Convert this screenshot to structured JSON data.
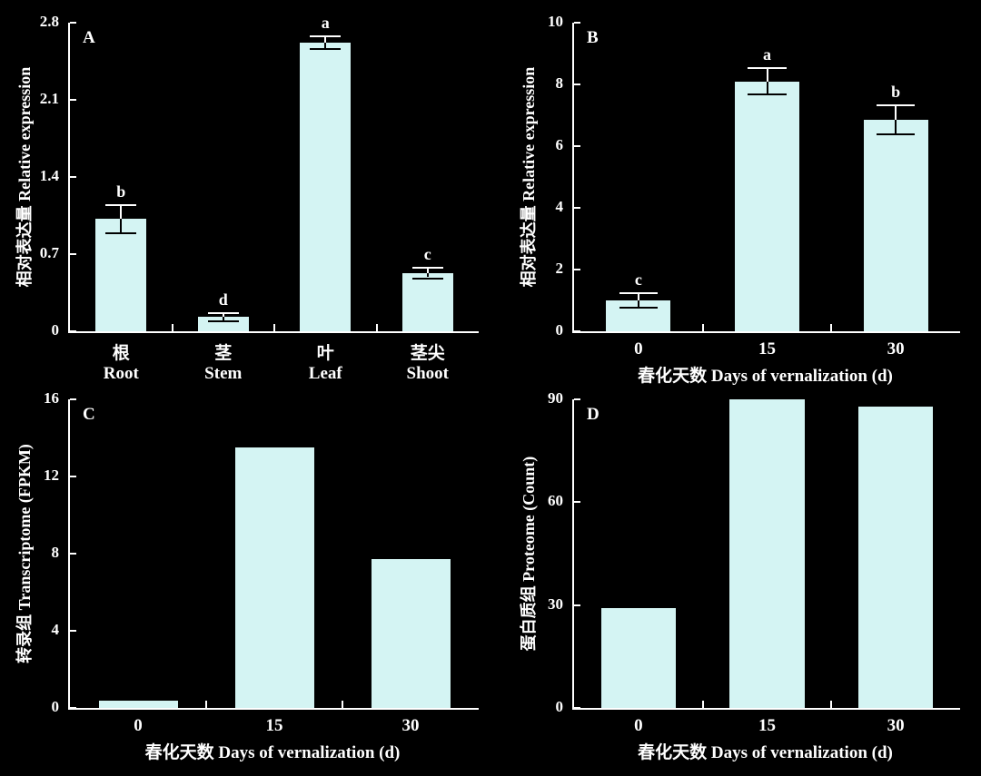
{
  "figure": {
    "background": "#000000",
    "text_color": "#ffffff",
    "axis_color": "#ffffff",
    "bar_fill": "#d4f4f3",
    "error_upper_color": "#ffffff",
    "error_lower_color": "#000000"
  },
  "chart_data": [
    {
      "panel": "A",
      "type": "bar",
      "ylabel": "相对表达量 Relative expression",
      "xlabel": "",
      "ylim": [
        0,
        2.8
      ],
      "yticks": [
        0,
        0.7,
        1.4,
        2.1,
        2.8
      ],
      "categories": [
        [
          "根",
          "Root"
        ],
        [
          "茎",
          "Stem"
        ],
        [
          "叶",
          "Leaf"
        ],
        [
          "茎尖",
          "Shoot"
        ]
      ],
      "values": [
        1.02,
        0.13,
        2.62,
        0.53
      ],
      "errors": [
        0.12,
        0.03,
        0.05,
        0.04
      ],
      "sig_letters": [
        "b",
        "d",
        "a",
        "c"
      ],
      "bar_fraction": 0.5,
      "grid": false,
      "legend": null
    },
    {
      "panel": "B",
      "type": "bar",
      "ylabel": "相对表达量 Relative expression",
      "xlabel": "春化天数 Days of vernalization (d)",
      "ylim": [
        0,
        10
      ],
      "yticks": [
        0,
        2,
        4,
        6,
        8,
        10
      ],
      "categories": [
        [
          "0"
        ],
        [
          "15"
        ],
        [
          "30"
        ]
      ],
      "values": [
        1.0,
        8.1,
        6.85
      ],
      "errors": [
        0.2,
        0.4,
        0.45
      ],
      "sig_letters": [
        "c",
        "a",
        "b"
      ],
      "bar_fraction": 0.5,
      "grid": false,
      "legend": null
    },
    {
      "panel": "C",
      "type": "bar",
      "ylabel": "转录组 Transcriptome (FPKM)",
      "xlabel": "春化天数 Days of vernalization (d)",
      "ylim": [
        0,
        16
      ],
      "yticks": [
        0,
        4,
        8,
        12,
        16
      ],
      "categories": [
        [
          "0"
        ],
        [
          "15"
        ],
        [
          "30"
        ]
      ],
      "values": [
        0.4,
        13.5,
        7.7
      ],
      "errors": null,
      "sig_letters": null,
      "bar_fraction": 0.58,
      "grid": false,
      "legend": null
    },
    {
      "panel": "D",
      "type": "bar",
      "ylabel": "蛋白质组 Proteome (Count)",
      "xlabel": "春化天数 Days of vernalization (d)",
      "ylim": [
        0,
        90
      ],
      "yticks": [
        0,
        30,
        60,
        90
      ],
      "categories": [
        [
          "0"
        ],
        [
          "15"
        ],
        [
          "30"
        ]
      ],
      "values": [
        29,
        90,
        88
      ],
      "errors": null,
      "sig_letters": null,
      "bar_fraction": 0.58,
      "grid": false,
      "legend": null
    }
  ]
}
